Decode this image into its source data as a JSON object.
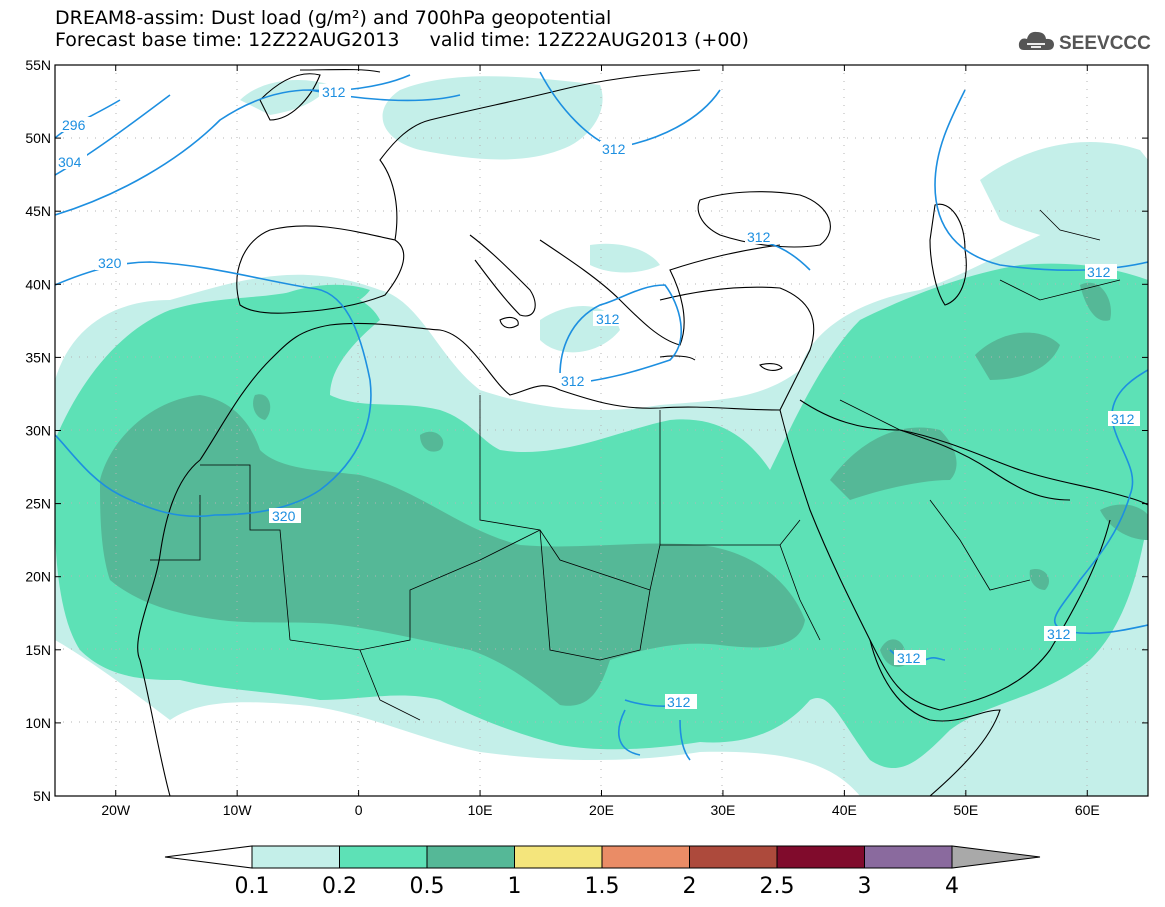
{
  "header": {
    "title_line1": "DREAM8-assim: Dust load (g/m²) and 700hPa geopotential",
    "title_line2": "Forecast base time: 12Z22AUG2013     valid time: 12Z22AUG2013 (+00)",
    "logo_text": "SEEVCCC",
    "logo_icon": "cloud-icon"
  },
  "map": {
    "lat_labels": [
      "55N",
      "50N",
      "45N",
      "40N",
      "35N",
      "30N",
      "25N",
      "20N",
      "15N",
      "10N",
      "5N"
    ],
    "lon_labels": [
      "20W",
      "10W",
      "0",
      "10E",
      "20E",
      "30E",
      "40E",
      "50E",
      "60E"
    ],
    "lat_range": [
      5,
      55
    ],
    "lon_range": [
      -25,
      65
    ],
    "grid": "dotted",
    "contour_labels": [
      "296",
      "304",
      "312",
      "312",
      "312",
      "312",
      "312",
      "312",
      "312",
      "312",
      "312",
      "312",
      "320",
      "320"
    ],
    "fill_colors": {
      "c01": "#c4efe9",
      "c02": "#5de1b6",
      "c05": "#55b897",
      "ocean_land": "#ffffff",
      "contour": "#1d8fe0",
      "coast": "#000000"
    }
  },
  "colorbar": {
    "ticks": [
      "0.1",
      "0.2",
      "0.5",
      "1",
      "1.5",
      "2",
      "2.5",
      "3",
      "4"
    ],
    "colors": [
      "#c4efe9",
      "#5de1b6",
      "#55b897",
      "#f4e57c",
      "#ea8c66",
      "#ad4a3c",
      "#800b2c",
      "#8a6a9e"
    ],
    "low_arrow_color": "#ffffff",
    "high_arrow_color": "#a9a9a9"
  }
}
